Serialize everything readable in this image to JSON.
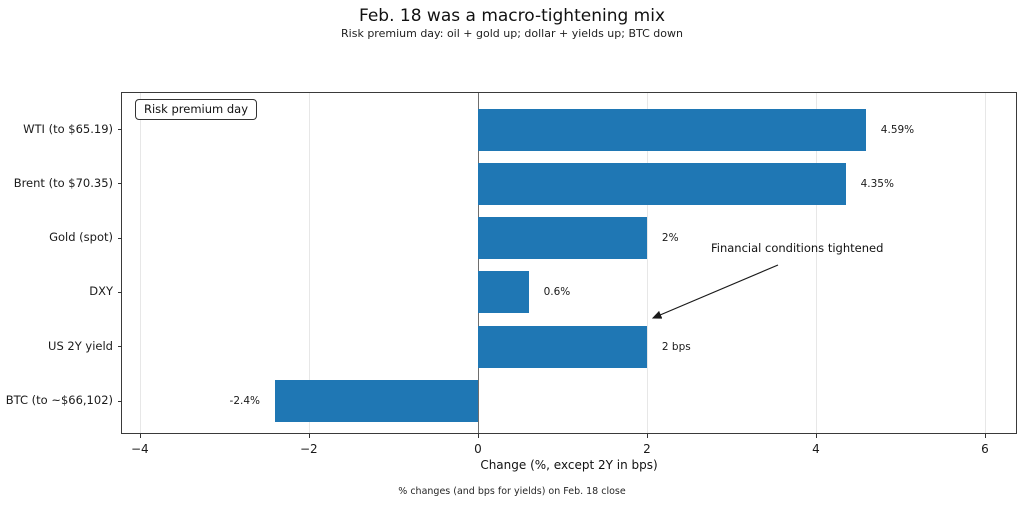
{
  "header": {
    "title": "Feb. 18 was a macro-tightening mix",
    "subtitle": "Risk premium day: oil + gold up; dollar + yields up; BTC down"
  },
  "legend": {
    "label": "Risk premium day"
  },
  "annotation": {
    "text": "Financial conditions tightened"
  },
  "chart_data": {
    "type": "bar",
    "orientation": "horizontal",
    "title": "Feb. 18 was a macro-tightening mix",
    "subtitle": "Risk premium day: oil + gold up; dollar + yields up; BTC down",
    "categories": [
      "WTI (to $65.19)",
      "Brent (to $70.35)",
      "Gold (spot)",
      "DXY",
      "US 2Y yield",
      "BTC (to ~$66,102)"
    ],
    "values": [
      4.59,
      4.35,
      2,
      0.6,
      2,
      -2.4
    ],
    "value_labels": [
      "4.59%",
      "4.35%",
      "2%",
      "0.6%",
      "2 bps",
      "-2.4%"
    ],
    "bar_color": "#1f77b4",
    "xlabel": "Change (%, except 2Y in bps)",
    "xticks": [
      -4,
      -2,
      0,
      2,
      4,
      6
    ],
    "xlim": [
      -4.21,
      6.39
    ],
    "grid": true,
    "zero_line": true,
    "legend_position": "upper left",
    "annotation_text": "Financial conditions tightened"
  },
  "footer": {
    "caption": "% changes (and bps for yields) on Feb. 18 close"
  }
}
